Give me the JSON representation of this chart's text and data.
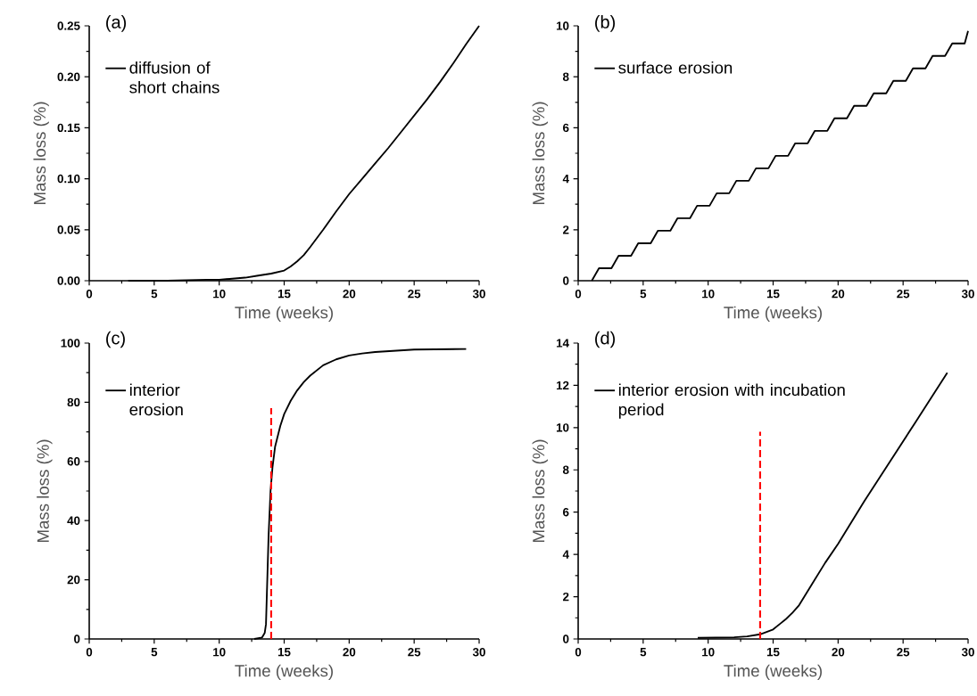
{
  "chart_data": [
    {
      "type": "line",
      "title": "(a)",
      "xlabel": "Time (weeks)",
      "ylabel": "Mass loss (%)",
      "xlim": [
        0,
        30
      ],
      "ylim": [
        0,
        0.25
      ],
      "xticks": [
        0,
        5,
        10,
        15,
        20,
        25,
        30
      ],
      "yticks": [
        {
          "value": 0,
          "label": "0.00"
        },
        {
          "value": 0.05,
          "label": "0.05"
        },
        {
          "value": 0.1,
          "label": "0.10"
        },
        {
          "value": 0.15,
          "label": "0.15"
        },
        {
          "value": 0.2,
          "label": "0.20"
        },
        {
          "value": 0.25,
          "label": "0.25"
        }
      ],
      "legend": "top left",
      "series": [
        {
          "name": "diffusion of short chains",
          "color": "#000000",
          "x": [
            3,
            6,
            9,
            10,
            11,
            12,
            13,
            14,
            15,
            15.5,
            16,
            16.5,
            17,
            18,
            19,
            20,
            21,
            22,
            23,
            24,
            25,
            26,
            27,
            28,
            29,
            30
          ],
          "values": [
            0,
            0,
            0.001,
            0.001,
            0.002,
            0.003,
            0.005,
            0.007,
            0.01,
            0.014,
            0.019,
            0.025,
            0.033,
            0.05,
            0.068,
            0.085,
            0.1,
            0.115,
            0.13,
            0.146,
            0.162,
            0.178,
            0.195,
            0.213,
            0.232,
            0.25
          ]
        }
      ]
    },
    {
      "type": "line",
      "title": "(b)",
      "xlabel": "Time (weeks)",
      "ylabel": "Mass loss (%)",
      "xlim": [
        0,
        30
      ],
      "ylim": [
        0,
        10
      ],
      "xticks": [
        0,
        5,
        10,
        15,
        20,
        25,
        30
      ],
      "yticks": [
        0,
        2,
        4,
        6,
        8,
        10
      ],
      "legend": "top left",
      "series": [
        {
          "name": "surface erosion",
          "color": "#000000",
          "x": [
            1.05,
            1.6,
            2.56,
            3.11,
            4.07,
            4.62,
            5.58,
            6.13,
            7.09,
            7.64,
            8.6,
            9.15,
            10.11,
            10.66,
            11.62,
            12.17,
            13.13,
            13.68,
            14.64,
            15.19,
            16.15,
            16.7,
            17.66,
            18.21,
            19.17,
            19.72,
            20.68,
            21.23,
            22.19,
            22.74,
            23.7,
            24.25,
            25.21,
            25.76,
            26.72,
            27.27,
            28.23,
            28.78,
            29.74,
            30
          ],
          "values": [
            0,
            0.49,
            0.49,
            0.98,
            0.98,
            1.47,
            1.47,
            1.96,
            1.96,
            2.45,
            2.45,
            2.94,
            2.94,
            3.43,
            3.43,
            3.92,
            3.92,
            4.41,
            4.41,
            4.9,
            4.9,
            5.39,
            5.39,
            5.88,
            5.88,
            6.37,
            6.37,
            6.86,
            6.86,
            7.35,
            7.35,
            7.84,
            7.84,
            8.33,
            8.33,
            8.82,
            8.82,
            9.31,
            9.31,
            9.8
          ]
        }
      ]
    },
    {
      "type": "line",
      "title": "(c)",
      "xlabel": "Time (weeks)",
      "ylabel": "Mass loss (%)",
      "xlim": [
        0,
        30
      ],
      "ylim": [
        0,
        100
      ],
      "xticks": [
        0,
        5,
        10,
        15,
        20,
        25,
        30
      ],
      "yticks": [
        0,
        20,
        40,
        60,
        80,
        100
      ],
      "legend": "top left",
      "series": [
        {
          "name": "interior erosion",
          "color": "#000000",
          "x": [
            12.7,
            13.3,
            13.5,
            13.6,
            13.7,
            13.8,
            13.95,
            14.1,
            14.3,
            14.7,
            15,
            15.5,
            16,
            16.5,
            17,
            18,
            19,
            20,
            21,
            22,
            25,
            29
          ],
          "values": [
            0,
            0.5,
            2,
            5,
            20,
            35,
            50,
            58,
            65,
            72,
            76,
            80.5,
            84,
            86.8,
            89,
            92.5,
            94.5,
            95.8,
            96.5,
            97,
            97.8,
            98
          ]
        },
        {
          "color": "#ff0000",
          "line_style": "dashed",
          "x": [
            14,
            14
          ],
          "values": [
            0,
            78
          ]
        }
      ]
    },
    {
      "type": "line",
      "title": "(d)",
      "xlabel": "Time (weeks)",
      "ylabel": "Mass loss (%)",
      "xlim": [
        0,
        30
      ],
      "ylim": [
        0,
        14
      ],
      "xticks": [
        0,
        5,
        10,
        15,
        20,
        25,
        30
      ],
      "yticks": [
        0,
        2,
        4,
        6,
        8,
        10,
        12,
        14
      ],
      "legend": "top left",
      "series": [
        {
          "name": "interior erosion with incubation period",
          "color": "#000000",
          "x": [
            9.2,
            12,
            13,
            14,
            15,
            15.5,
            16,
            16.5,
            17,
            18,
            19,
            20,
            22,
            24,
            26,
            28.4
          ],
          "values": [
            0.05,
            0.08,
            0.12,
            0.22,
            0.45,
            0.7,
            0.95,
            1.25,
            1.6,
            2.6,
            3.6,
            4.5,
            6.5,
            8.4,
            10.3,
            12.6
          ]
        },
        {
          "color": "#ff0000",
          "line_style": "dashed",
          "x": [
            14,
            14
          ],
          "values": [
            0,
            9.8
          ]
        }
      ]
    }
  ]
}
